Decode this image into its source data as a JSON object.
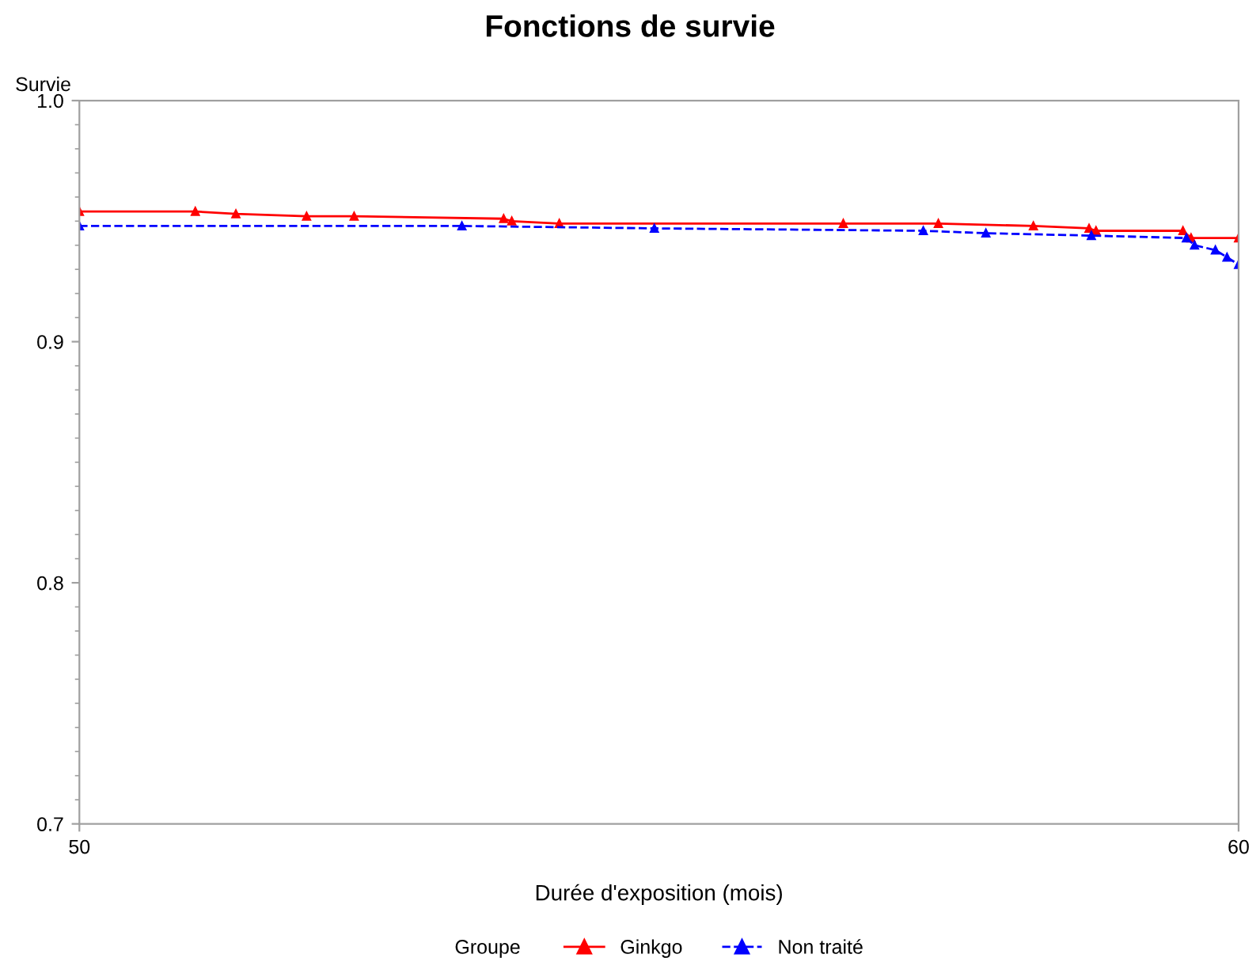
{
  "chart_data": {
    "type": "line",
    "title": "Fonctions de survie",
    "xlabel": "Durée d'exposition (mois)",
    "ylabel": "Survie",
    "legend_title": "Groupe",
    "xlim": [
      50,
      60
    ],
    "xticks": [
      50,
      60
    ],
    "ylim": [
      0.7,
      1.0
    ],
    "yticks": [
      {
        "value": 0.7,
        "label": "0.7"
      },
      {
        "value": 0.8,
        "label": "0.8"
      },
      {
        "value": 0.9,
        "label": "0.9"
      },
      {
        "value": 1.0,
        "label": "1.0"
      }
    ],
    "grid": false,
    "legend": "bottom",
    "marker": "triangle",
    "series": [
      {
        "name": "Ginkgo",
        "color": "#ff0000",
        "line_style": "solid",
        "x": [
          50.0,
          51.0,
          51.35,
          51.96,
          52.37,
          53.66,
          53.73,
          54.14,
          56.59,
          57.41,
          58.23,
          58.71,
          58.77,
          59.52,
          59.59,
          60.0
        ],
        "values": [
          0.954,
          0.954,
          0.953,
          0.952,
          0.952,
          0.951,
          0.95,
          0.949,
          0.949,
          0.949,
          0.948,
          0.947,
          0.946,
          0.946,
          0.943,
          0.943
        ]
      },
      {
        "name": "Non traité",
        "color": "#0000ff",
        "line_style": "dashed",
        "x": [
          50.0,
          53.3,
          54.96,
          57.28,
          57.82,
          58.73,
          59.55,
          59.62,
          59.8,
          59.9,
          60.0
        ],
        "values": [
          0.948,
          0.948,
          0.947,
          0.946,
          0.945,
          0.944,
          0.943,
          0.94,
          0.938,
          0.935,
          0.932
        ]
      }
    ]
  }
}
